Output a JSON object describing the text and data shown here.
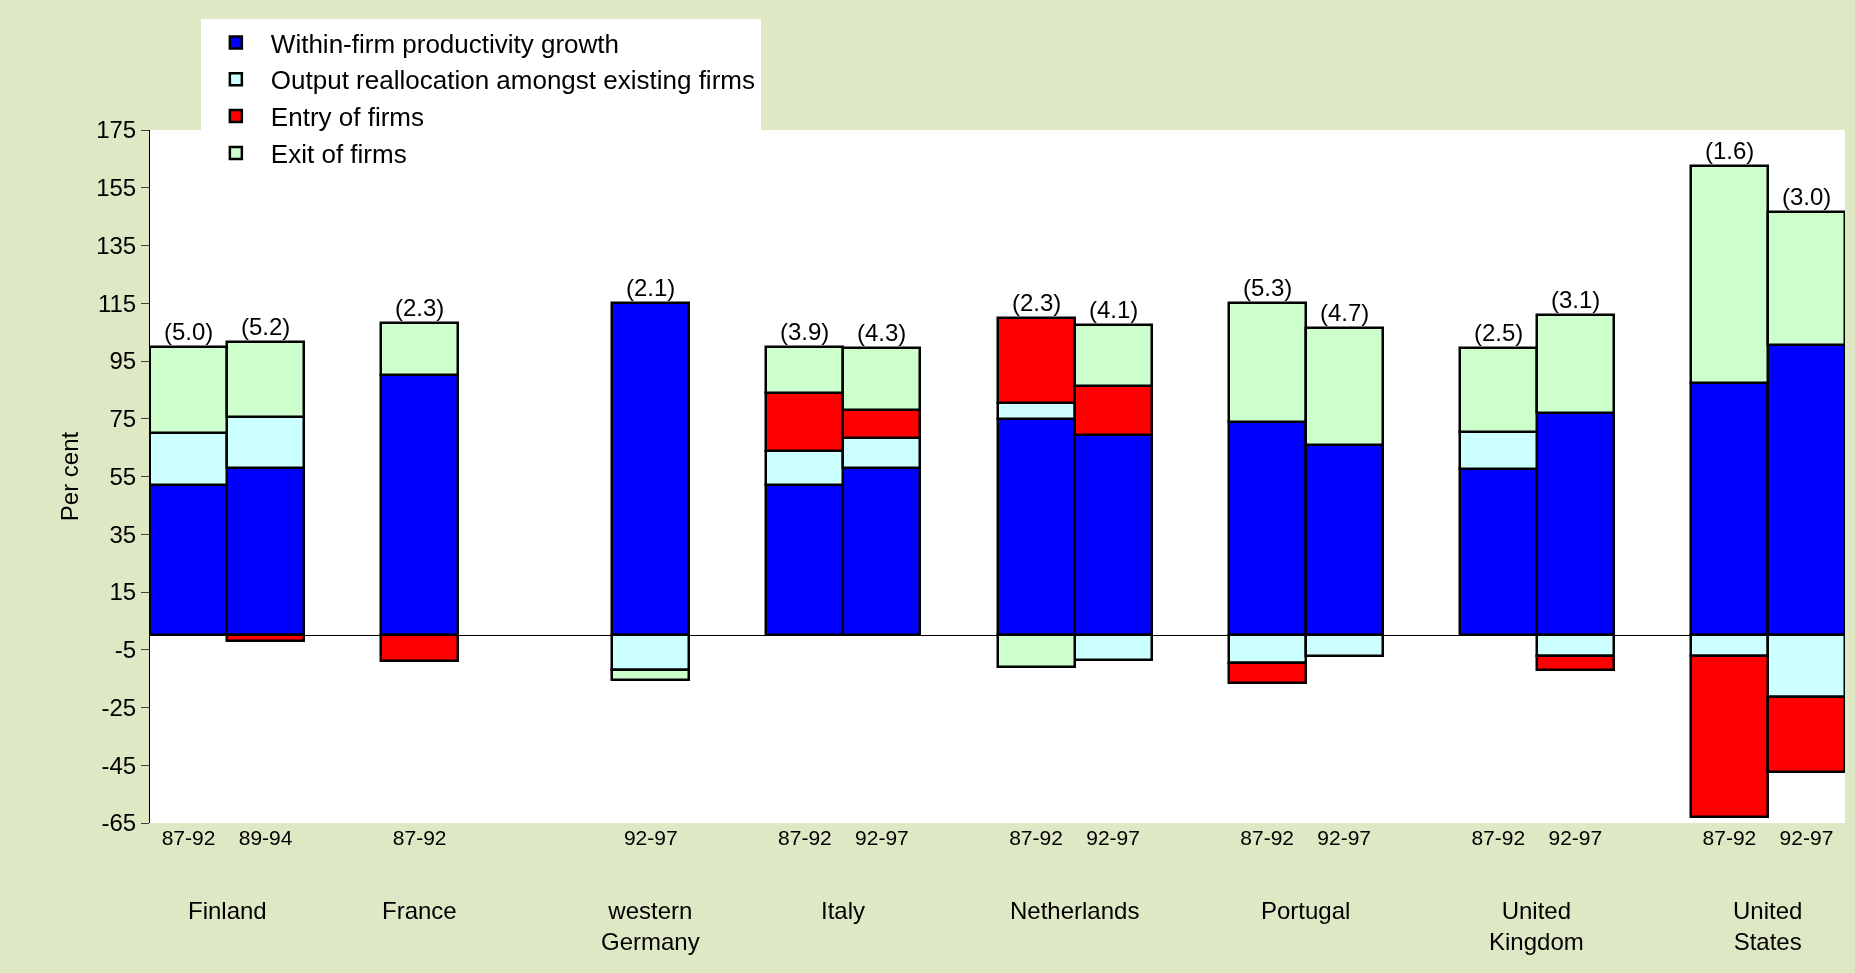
{
  "chart_data": {
    "type": "bar",
    "stacked": true,
    "ylabel": "Per cent",
    "ylim": [
      -65,
      175
    ],
    "yticks": [
      -65,
      -45,
      -25,
      -5,
      15,
      35,
      55,
      75,
      95,
      115,
      135,
      155,
      175
    ],
    "legend": "top left",
    "categories": [
      "87-92",
      "89-94",
      null,
      "87-92",
      null,
      null,
      "92-97",
      null,
      "87-92",
      "92-97",
      null,
      "87-92",
      "92-97",
      null,
      "87-92",
      "92-97",
      null,
      "87-92",
      "92-97",
      null,
      "87-92",
      "92-97"
    ],
    "series": [
      {
        "name": "Within-firm productivity growth",
        "color": "#0000ff",
        "values": [
          52,
          58,
          null,
          90,
          null,
          null,
          115,
          null,
          52,
          58,
          null,
          75,
          69.5,
          null,
          74,
          66,
          null,
          57.5,
          77,
          null,
          87.5,
          100.5
        ]
      },
      {
        "name": "Output reallocation amongst existing firms",
        "color": "#ccffff",
        "values": [
          18,
          17.5,
          null,
          null,
          null,
          null,
          -12,
          null,
          12,
          10.5,
          null,
          5.5,
          -8.5,
          null,
          -9.5,
          -7,
          null,
          13,
          -7,
          null,
          -7,
          -21.5
        ]
      },
      {
        "name": "Entry of firms",
        "color": "#ff0000",
        "values": [
          null,
          -2,
          null,
          -9,
          null,
          null,
          null,
          null,
          20,
          9.5,
          null,
          29.5,
          17,
          null,
          -7,
          null,
          null,
          null,
          -5,
          null,
          -56,
          -26
        ]
      },
      {
        "name": "Exit of firms",
        "color": "#ccffcc",
        "values": [
          30,
          26,
          null,
          18,
          null,
          null,
          -3.5,
          null,
          16,
          21.5,
          null,
          -11,
          21,
          null,
          41,
          40.5,
          null,
          29,
          34,
          null,
          75,
          46
        ]
      }
    ],
    "annotations": [
      {
        "text": "(5.0)",
        "y": 100
      },
      {
        "text": "(5.2)",
        "y": 101.5
      },
      {
        "text": "(2.3)",
        "y": 108
      },
      {
        "text": "(2.1)",
        "y": 115
      },
      {
        "text": "(3.9)",
        "y": 100
      },
      {
        "text": "(4.3)",
        "y": 99.5
      },
      {
        "text": "(2.3)",
        "y": 110
      },
      {
        "text": "(4.1)",
        "y": 107.5
      },
      {
        "text": "(5.3)",
        "y": 115
      },
      {
        "text": "(4.7)",
        "y": 106.5
      },
      {
        "text": "(2.5)",
        "y": 99.5
      },
      {
        "text": "(3.1)",
        "y": 111
      },
      {
        "text": "(1.6)",
        "y": 162.5
      },
      {
        "text": "(3.0)",
        "y": 146.5
      },
      "Finland",
      "France",
      "western\nGermany",
      "Italy",
      "Netherlands",
      "Portugal",
      "United\nKingdom",
      "United\nStates"
    ]
  }
}
